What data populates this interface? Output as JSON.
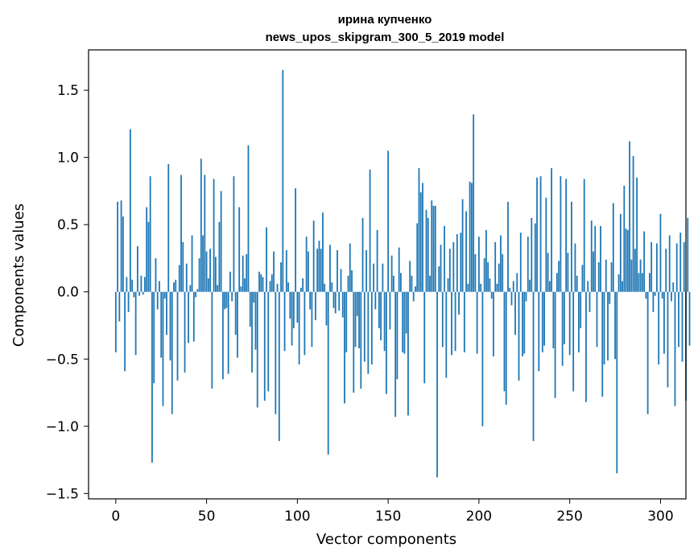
{
  "chart_data": {
    "type": "bar",
    "title_line1": "ирина купченко",
    "title_line2": "news_upos_skipgram_300_5_2019 model",
    "xlabel": "Vector components",
    "ylabel": "Components values",
    "xlim": [
      -15,
      314
    ],
    "ylim": [
      -1.54,
      1.8
    ],
    "x_ticks": [
      0,
      50,
      100,
      150,
      200,
      250,
      300
    ],
    "x_tick_labels": [
      "0",
      "50",
      "100",
      "150",
      "200",
      "250",
      "300"
    ],
    "y_ticks": [
      -1.5,
      -1.0,
      -0.5,
      0.0,
      0.5,
      1.0,
      1.5
    ],
    "y_tick_labels": [
      "−1.5",
      "−1.0",
      "−0.5",
      "0.0",
      "0.5",
      "1.0",
      "1.5"
    ],
    "bar_color": "#1f77b4",
    "values": [
      -0.45,
      0.67,
      -0.22,
      0.68,
      0.56,
      -0.59,
      0.11,
      -0.15,
      1.21,
      0.09,
      -0.04,
      -0.47,
      0.34,
      -0.03,
      0.12,
      -0.02,
      0.11,
      0.63,
      0.52,
      0.86,
      -1.27,
      -0.68,
      0.25,
      -0.13,
      0.08,
      -0.49,
      -0.85,
      -0.05,
      -0.32,
      0.95,
      -0.51,
      -0.91,
      0.07,
      0.09,
      -0.66,
      0.2,
      0.87,
      0.37,
      -0.6,
      0.21,
      -0.38,
      0.05,
      0.42,
      -0.37,
      -0.04,
      0.02,
      0.25,
      0.99,
      0.42,
      0.87,
      0.3,
      0.1,
      0.32,
      -0.72,
      0.84,
      0.26,
      0.05,
      0.52,
      0.75,
      -0.65,
      -0.13,
      -0.12,
      -0.61,
      0.15,
      -0.07,
      0.86,
      -0.32,
      -0.49,
      0.63,
      0.04,
      0.27,
      0.1,
      0.28,
      1.09,
      -0.26,
      -0.6,
      -0.08,
      -0.43,
      -0.86,
      0.15,
      0.13,
      0.11,
      -0.81,
      0.48,
      -0.74,
      0.08,
      0.13,
      0.3,
      -0.91,
      0.06,
      -1.11,
      0.22,
      1.65,
      -0.44,
      0.31,
      0.07,
      -0.2,
      -0.4,
      -0.27,
      0.77,
      -0.23,
      -0.54,
      0.03,
      0.1,
      -0.47,
      0.41,
      0.3,
      -0.13,
      -0.41,
      0.53,
      -0.21,
      0.32,
      0.38,
      0.32,
      0.59,
      0.06,
      -0.25,
      -1.21,
      0.35,
      0.07,
      -0.12,
      -0.16,
      0.31,
      -0.14,
      0.17,
      -0.19,
      -0.83,
      -0.45,
      0.12,
      0.36,
      0.16,
      -0.75,
      -0.41,
      -0.18,
      -0.42,
      -0.72,
      0.55,
      -0.52,
      0.31,
      -0.61,
      0.91,
      -0.54,
      0.21,
      -0.13,
      0.46,
      -0.27,
      -0.36,
      0.21,
      -0.44,
      -0.76,
      1.05,
      -0.28,
      0.27,
      0.12,
      -0.93,
      -0.65,
      0.33,
      0.14,
      -0.45,
      -0.46,
      -0.31,
      -0.92,
      0.23,
      0.12,
      -0.07,
      0.04,
      0.51,
      0.92,
      0.74,
      0.81,
      -0.68,
      0.61,
      0.55,
      0.12,
      0.68,
      0.64,
      0.64,
      -1.38,
      0.19,
      0.35,
      -0.41,
      0.49,
      -0.64,
      0.1,
      0.32,
      -0.47,
      0.37,
      -0.44,
      0.43,
      -0.17,
      0.44,
      0.69,
      -0.45,
      0.6,
      0.06,
      0.82,
      0.81,
      1.32,
      0.28,
      -0.46,
      0.41,
      0.06,
      -1.0,
      0.25,
      0.46,
      0.22,
      0.1,
      -0.05,
      -0.48,
      0.37,
      0.06,
      0.21,
      0.42,
      0.28,
      -0.74,
      -0.84,
      0.67,
      0.03,
      -0.1,
      0.08,
      -0.32,
      0.14,
      -0.66,
      0.44,
      -0.48,
      -0.46,
      -0.07,
      0.41,
      0.09,
      0.55,
      -1.11,
      0.51,
      0.85,
      -0.59,
      0.86,
      -0.45,
      -0.4,
      0.7,
      0.29,
      0.08,
      0.92,
      -0.42,
      -0.79,
      0.14,
      0.23,
      0.86,
      -0.55,
      -0.39,
      0.84,
      0.29,
      -0.47,
      0.67,
      -0.74,
      0.36,
      0.12,
      -0.45,
      -0.27,
      0.2,
      0.84,
      -0.82,
      0.08,
      -0.15,
      0.53,
      0.3,
      0.49,
      -0.41,
      0.22,
      0.49,
      -0.78,
      -0.54,
      0.24,
      -0.51,
      -0.09,
      0.22,
      0.66,
      -0.5,
      -1.35,
      0.13,
      0.58,
      0.08,
      0.79,
      0.47,
      0.46,
      1.12,
      0.24,
      1.01,
      0.32,
      0.85,
      0.14,
      0.24,
      0.14,
      0.45,
      -0.05,
      -0.91,
      0.14,
      0.37,
      -0.15,
      -0.03,
      0.36,
      -0.54,
      0.58,
      -0.05,
      -0.46,
      0.32,
      -0.71,
      0.42,
      -0.07,
      0.07,
      -0.85,
      0.36,
      -0.41,
      0.44,
      -0.52,
      0.37,
      -0.81,
      0.55,
      -0.4
    ],
    "grid": false,
    "legend": false
  }
}
